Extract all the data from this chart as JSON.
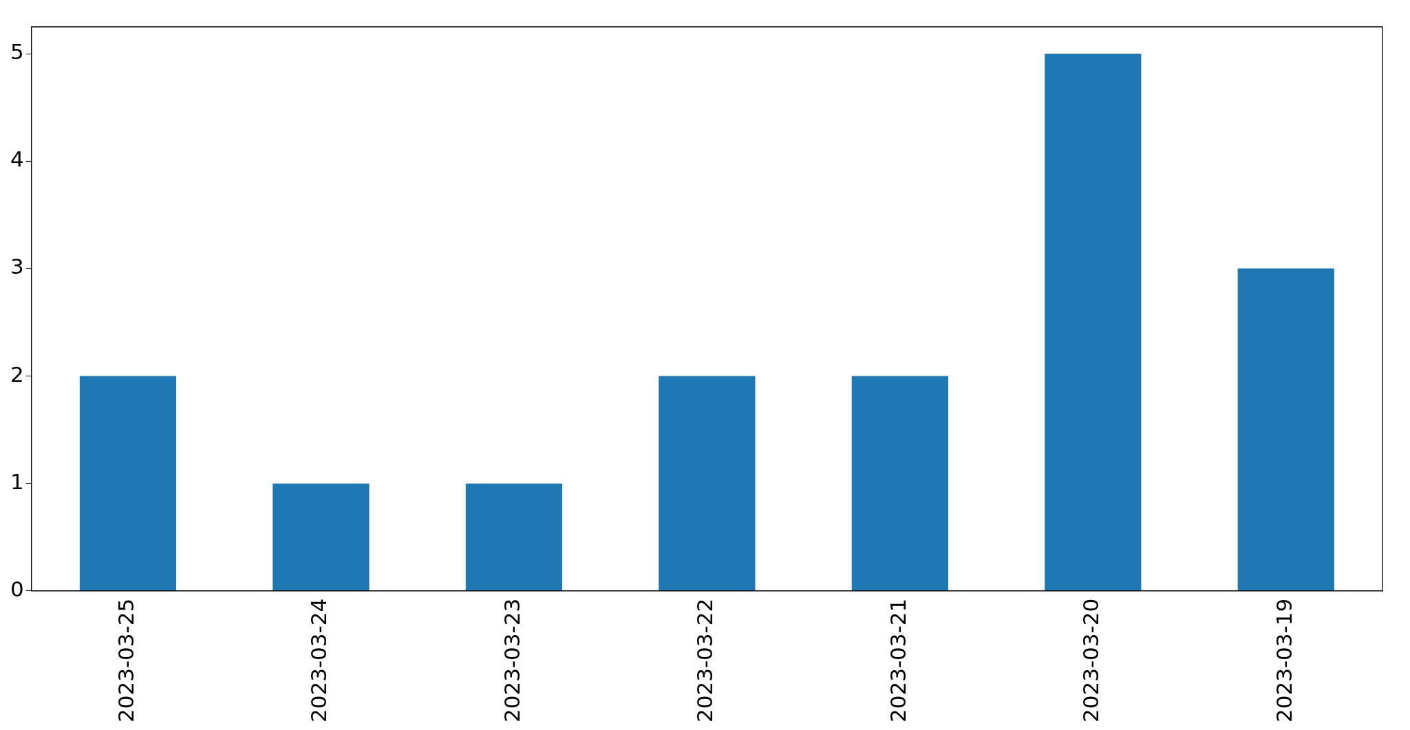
{
  "chart_data": {
    "type": "bar",
    "categories": [
      "2023-03-25",
      "2023-03-24",
      "2023-03-23",
      "2023-03-22",
      "2023-03-21",
      "2023-03-20",
      "2023-03-19"
    ],
    "values": [
      2,
      1,
      1,
      2,
      2,
      5,
      3
    ],
    "color": "#1f77b4",
    "ylim": [
      0,
      5.25
    ],
    "yticks": [
      0,
      1,
      2,
      3,
      4,
      5
    ],
    "grid": false,
    "legend": false
  }
}
